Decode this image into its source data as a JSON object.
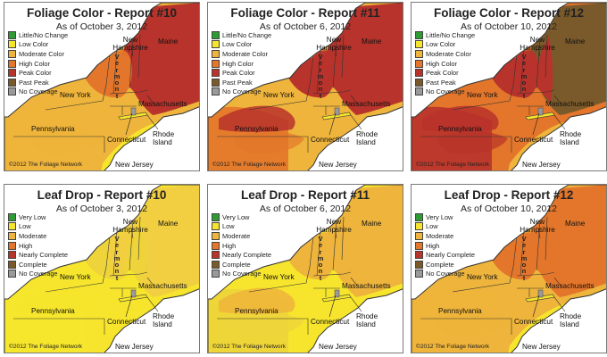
{
  "color_legend": [
    {
      "label": "Little/No Change",
      "color": "#2e9b35"
    },
    {
      "label": "Low Color",
      "color": "#f6e52c"
    },
    {
      "label": "Moderate Color",
      "color": "#eeb43b"
    },
    {
      "label": "High Color",
      "color": "#e3762b"
    },
    {
      "label": "Peak Color",
      "color": "#b8332b"
    },
    {
      "label": "Past Peak",
      "color": "#7a5a2a"
    },
    {
      "label": "No Coverage",
      "color": "#9a9a9a"
    }
  ],
  "drop_legend": [
    {
      "label": "Very Low",
      "color": "#2e9b35"
    },
    {
      "label": "Low",
      "color": "#f6e52c"
    },
    {
      "label": "Moderate",
      "color": "#eeb43b"
    },
    {
      "label": "High",
      "color": "#e3762b"
    },
    {
      "label": "Nearly Complete",
      "color": "#b8332b"
    },
    {
      "label": "Complete",
      "color": "#7a5a2a"
    },
    {
      "label": "No Coverage",
      "color": "#9a9a9a"
    }
  ],
  "state_labels": {
    "new_york": "New York",
    "pennsylvania": "Pennsylvania",
    "new_jersey": "New Jersey",
    "connecticut": "Connecticut",
    "rhode_island": "Rhode Island",
    "massachusetts": "Massachusetts",
    "maine": "Maine",
    "new_hampshire": "New Hampshire",
    "vermont": "Vermont"
  },
  "copyright": "©2012 The Foliage Network",
  "panels": [
    {
      "title": "Foliage Color - Report #10",
      "date": "As of October 3, 2012",
      "legend": "color",
      "colors": {
        "base": "#eeb43b",
        "west": "#eeb43b",
        "ny_north": "#e3762b",
        "ny_south": "#eeb43b",
        "vt": "#e3762b",
        "nh": "#b8332b",
        "me": "#b8332b",
        "ma": "#eeb43b",
        "pa": "#eeb43b",
        "east": "#f6e52c"
      }
    },
    {
      "title": "Foliage Color - Report #11",
      "date": "As of October 6, 2012",
      "legend": "color",
      "colors": {
        "base": "#eeb43b",
        "west": "#e3762b",
        "ny_north": "#b8332b",
        "ny_south": "#b8332b",
        "vt": "#b8332b",
        "nh": "#b8332b",
        "me": "#b8332b",
        "ma": "#e3762b",
        "pa": "#e3762b",
        "east": "#eeb43b"
      }
    },
    {
      "title": "Foliage Color - Report #12",
      "date": "As of October 10, 2012",
      "legend": "color",
      "colors": {
        "base": "#e3762b",
        "west": "#b8332b",
        "ny_north": "#b8332b",
        "ny_south": "#b8332b",
        "vt": "#b8332b",
        "nh": "#b8332b",
        "me": "#7a5a2a",
        "ma": "#e3762b",
        "pa": "#b8332b",
        "east": "#eeb43b"
      }
    },
    {
      "title": "Leaf Drop - Report #10",
      "date": "As of October 3, 2012",
      "legend": "drop",
      "colors": {
        "base": "#f6e52c",
        "west": "#f6e52c",
        "ny_north": "#eed43a",
        "ny_south": "#f6e52c",
        "vt": "#f1cf40",
        "nh": "#eed43a",
        "me": "#f1cf40",
        "ma": "#f6e52c",
        "pa": "#f6e52c",
        "east": "#f6e52c"
      }
    },
    {
      "title": "Leaf Drop - Report #11",
      "date": "As of October 6, 2012",
      "legend": "drop",
      "colors": {
        "base": "#f6e52c",
        "west": "#eed43a",
        "ny_north": "#eeb43b",
        "ny_south": "#eeb43b",
        "vt": "#eeb43b",
        "nh": "#eeb43b",
        "me": "#eeb43b",
        "ma": "#f1cf40",
        "pa": "#eed43a",
        "east": "#f6e52c"
      }
    },
    {
      "title": "Leaf Drop - Report #12",
      "date": "As of October 10, 2012",
      "legend": "drop",
      "colors": {
        "base": "#eeb43b",
        "west": "#eeb43b",
        "ny_north": "#e3762b",
        "ny_south": "#eeb43b",
        "vt": "#e3762b",
        "nh": "#e3762b",
        "me": "#e3762b",
        "ma": "#eeb43b",
        "pa": "#eeb43b",
        "east": "#f6e52c"
      }
    }
  ]
}
